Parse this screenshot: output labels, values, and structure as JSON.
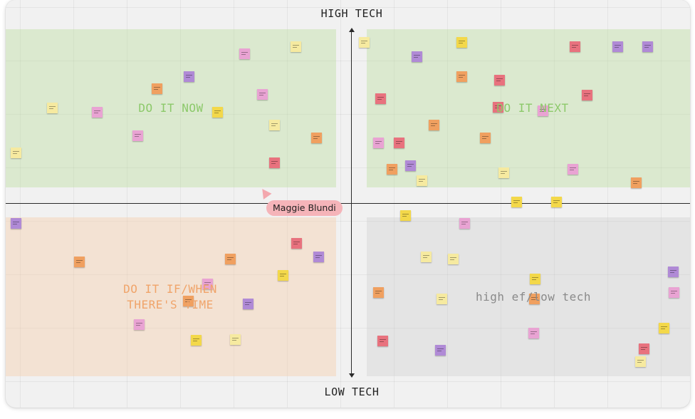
{
  "axes": {
    "top_label": "HIGH TECH",
    "bottom_label": "LOW TECH"
  },
  "quadrants": {
    "top_left": {
      "label": "DO IT NOW",
      "color": "#8cc96a"
    },
    "top_right": {
      "label": "DO IT NEXT",
      "color": "#8cc96a"
    },
    "bottom_left": {
      "label": "DO IT IF/WHEN\nTHERE'S TIME",
      "color": "#f0a46a"
    },
    "bottom_right": {
      "label": "high ef/low tech",
      "color": "#888888"
    }
  },
  "collaborator": {
    "name": "Maggie Blundi",
    "color": "#f5b4b9"
  },
  "note_colors": {
    "yellow": "#f6eaa0",
    "gold": "#f3d84a",
    "orange": "#f0a060",
    "red": "#e8727e",
    "pink": "#e9a3d3",
    "purple": "#b08ad6"
  }
}
